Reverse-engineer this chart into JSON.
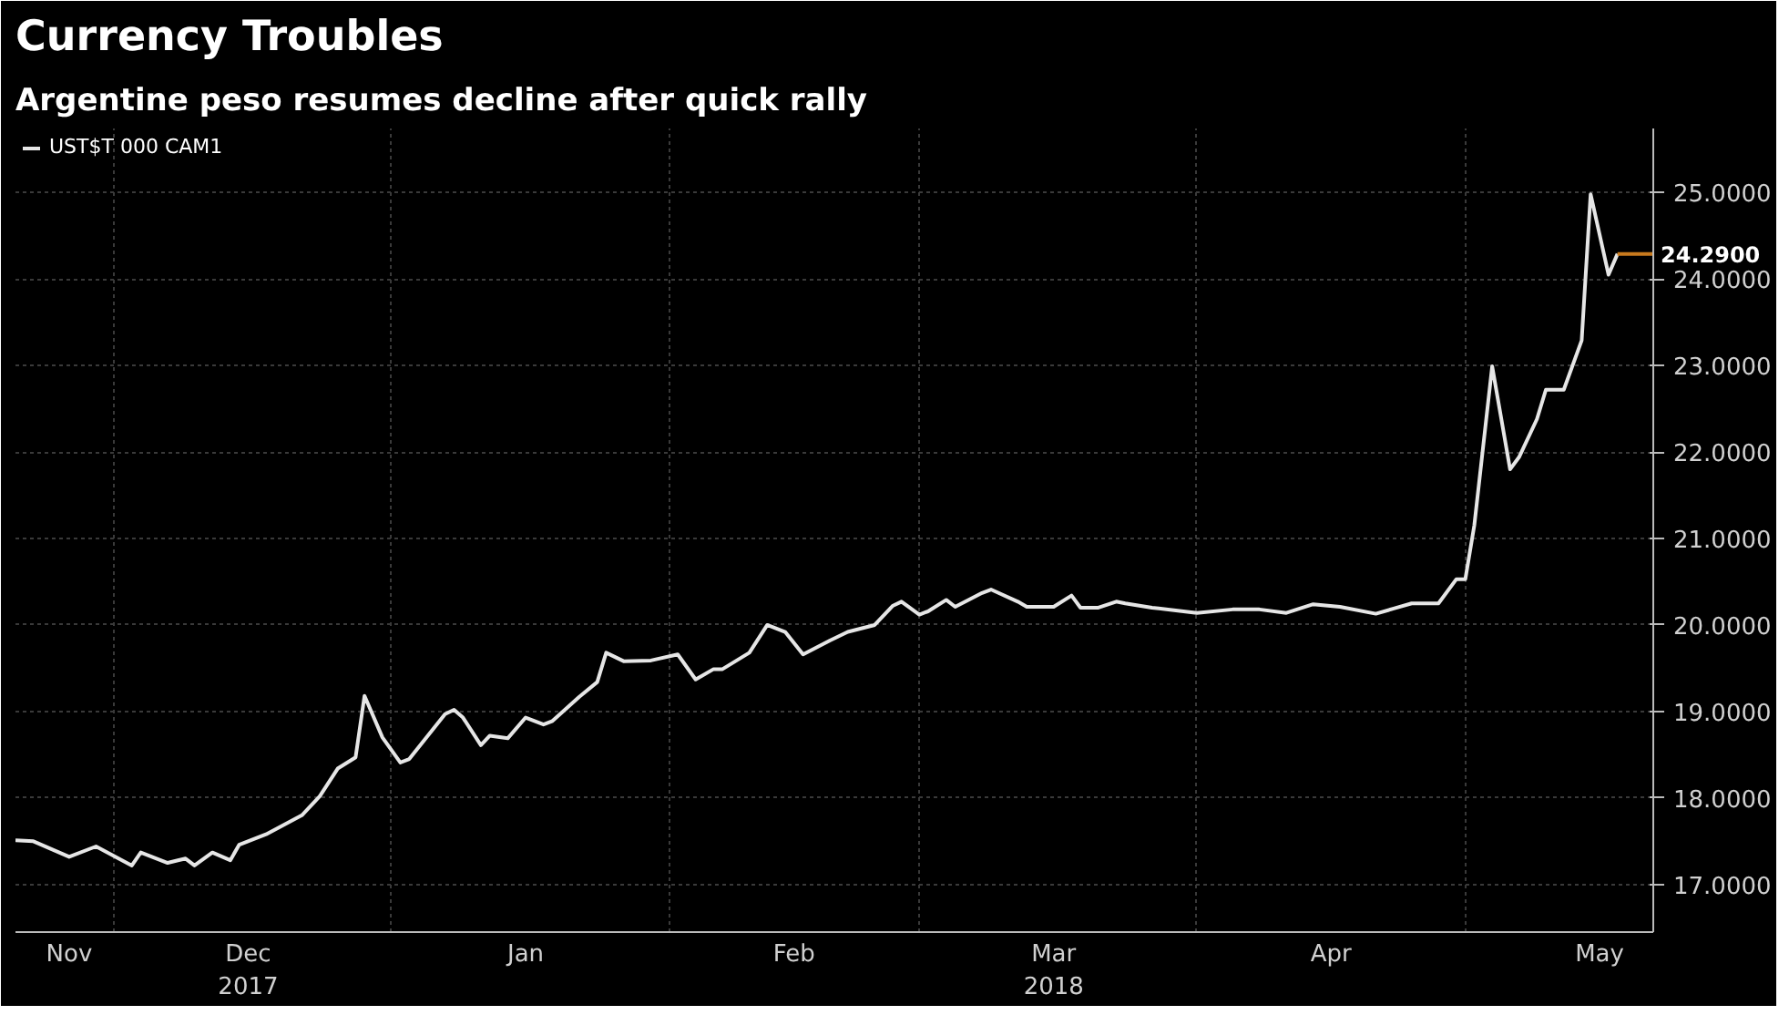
{
  "chart_data": {
    "type": "line",
    "title": "Currency Troubles",
    "subtitle": "Argentine peso resumes decline after quick rally",
    "x": [
      "2017-11-20",
      "2017-11-22",
      "2017-11-26",
      "2017-11-29",
      "2017-12-03",
      "2017-12-04",
      "2017-12-07",
      "2017-12-09",
      "2017-12-10",
      "2017-12-12",
      "2017-12-14",
      "2017-12-15",
      "2017-12-18",
      "2017-12-22",
      "2017-12-24",
      "2017-12-26",
      "2017-12-28",
      "2017-12-29",
      "2017-12-31",
      "2018-01-02",
      "2018-01-03",
      "2018-01-07",
      "2018-01-08",
      "2018-01-09",
      "2018-01-11",
      "2018-01-12",
      "2018-01-14",
      "2018-01-16",
      "2018-01-18",
      "2018-01-19",
      "2018-01-22",
      "2018-01-24",
      "2018-01-25",
      "2018-01-27",
      "2018-01-30",
      "2018-02-02",
      "2018-02-04",
      "2018-02-06",
      "2018-02-07",
      "2018-02-10",
      "2018-02-12",
      "2018-02-14",
      "2018-02-16",
      "2018-02-19",
      "2018-02-21",
      "2018-02-24",
      "2018-02-26",
      "2018-02-27",
      "2018-03-01",
      "2018-03-02",
      "2018-03-04",
      "2018-03-05",
      "2018-03-08",
      "2018-03-09",
      "2018-03-12",
      "2018-03-13",
      "2018-03-16",
      "2018-03-18",
      "2018-03-19",
      "2018-03-21",
      "2018-03-23",
      "2018-03-24",
      "2018-03-27",
      "2018-04-01",
      "2018-04-05",
      "2018-04-08",
      "2018-04-11",
      "2018-04-14",
      "2018-04-17",
      "2018-04-21",
      "2018-04-23",
      "2018-04-25",
      "2018-04-28",
      "2018-04-30",
      "2018-05-01",
      "2018-05-02",
      "2018-05-04",
      "2018-05-06",
      "2018-05-07",
      "2018-05-09",
      "2018-05-10",
      "2018-05-12",
      "2018-05-14",
      "2018-05-15",
      "2018-05-17",
      "2018-05-18"
    ],
    "series": [
      {
        "name": "UST$T 000 CAM1",
        "color": "#e6e6e6",
        "values": [
          17.51,
          17.5,
          17.32,
          17.44,
          17.22,
          17.37,
          17.25,
          17.3,
          17.22,
          17.37,
          17.28,
          17.46,
          17.58,
          17.8,
          18.02,
          18.34,
          18.47,
          19.18,
          18.7,
          18.41,
          18.45,
          18.97,
          19.02,
          18.93,
          18.61,
          18.72,
          18.69,
          18.93,
          18.85,
          18.89,
          19.17,
          19.34,
          19.68,
          19.58,
          19.59,
          19.66,
          19.37,
          19.49,
          19.49,
          19.68,
          20.0,
          19.92,
          19.66,
          19.82,
          19.92,
          20.0,
          20.22,
          20.27,
          20.12,
          20.16,
          20.29,
          20.21,
          20.37,
          20.41,
          20.27,
          20.21,
          20.21,
          20.34,
          20.2,
          20.2,
          20.27,
          20.25,
          20.2,
          20.14,
          20.18,
          20.18,
          20.14,
          20.24,
          20.21,
          20.13,
          20.19,
          20.25,
          20.25,
          20.53,
          20.53,
          21.15,
          22.99,
          21.8,
          21.94,
          22.38,
          22.72,
          22.72,
          23.29,
          24.98,
          24.05,
          24.29
        ]
      }
    ],
    "annotations": [
      {
        "text": "24.2900",
        "x": "2018-05-18",
        "y": 24.29
      }
    ],
    "xlim": [
      "2017-11-20",
      "2018-05-22"
    ],
    "xticks": [
      {
        "value": "2017-11-26",
        "label": "Nov"
      },
      {
        "value": "2017-12-01",
        "label": null
      },
      {
        "value": "2017-12-16",
        "label": "Dec\n2017"
      },
      {
        "value": "2018-01-01",
        "label": null
      },
      {
        "value": "2018-01-16",
        "label": "Jan"
      },
      {
        "value": "2018-02-01",
        "label": null
      },
      {
        "value": "2018-02-15",
        "label": "Feb"
      },
      {
        "value": "2018-03-01",
        "label": null
      },
      {
        "value": "2018-03-16",
        "label": "Mar\n2018"
      },
      {
        "value": "2018-04-01",
        "label": null
      },
      {
        "value": "2018-04-16",
        "label": "Apr"
      },
      {
        "value": "2018-05-01",
        "label": null
      },
      {
        "value": "2018-05-16",
        "label": "May"
      }
    ],
    "ylim": [
      16.45,
      25.74
    ],
    "yticks": [
      {
        "value": 17,
        "label": "17.0000"
      },
      {
        "value": 18,
        "label": "18.0000"
      },
      {
        "value": 19,
        "label": "19.0000"
      },
      {
        "value": 20,
        "label": "20.0000"
      },
      {
        "value": 21,
        "label": "21.0000"
      },
      {
        "value": 22,
        "label": "22.0000"
      },
      {
        "value": 23,
        "label": "23.0000"
      },
      {
        "value": 24,
        "label": "24.0000"
      },
      {
        "value": 25,
        "label": "25.0000"
      }
    ],
    "grid": true,
    "legend": "top left",
    "marker": "none",
    "line_style": "solid"
  }
}
